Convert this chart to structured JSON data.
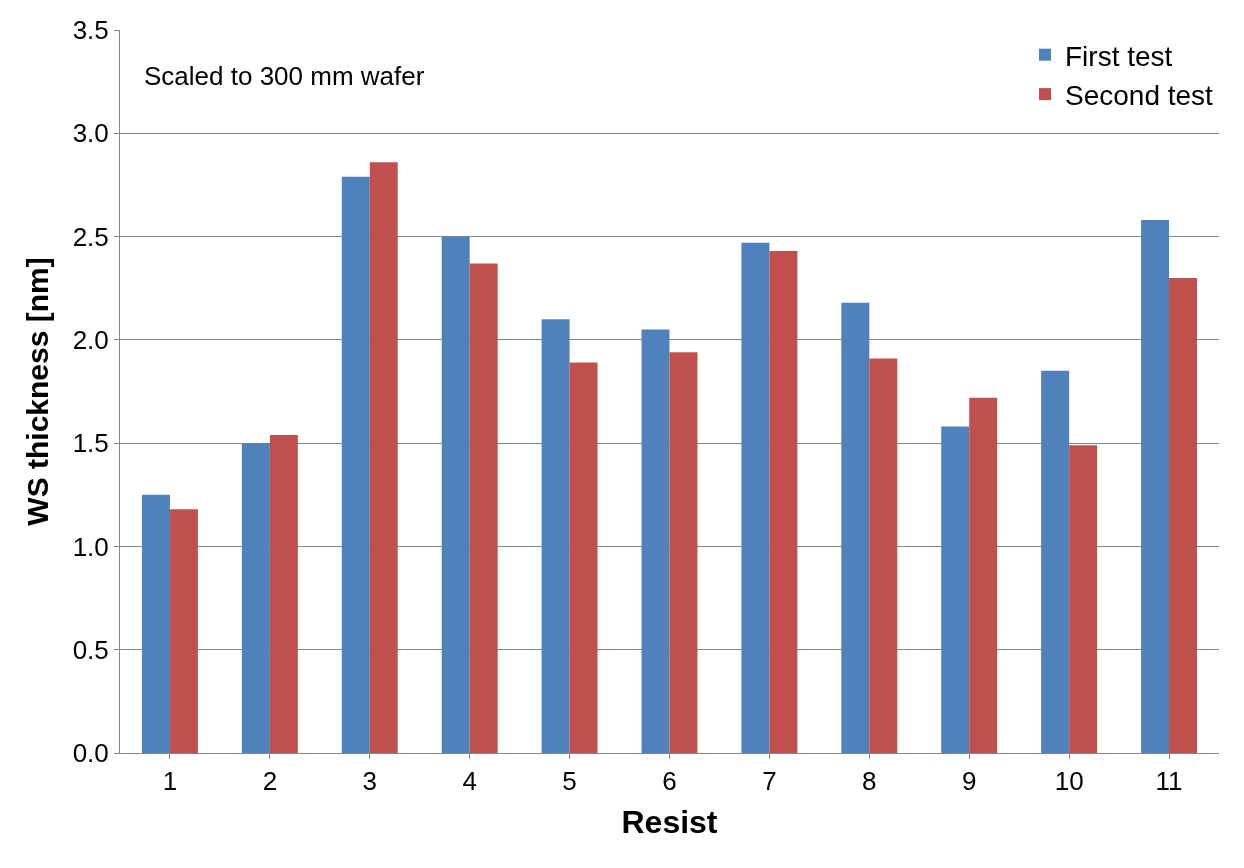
{
  "chart_data": {
    "type": "bar",
    "xlabel": "Resist",
    "ylabel": "WS thickness [nm]",
    "categories": [
      "1",
      "2",
      "3",
      "4",
      "5",
      "6",
      "7",
      "8",
      "9",
      "10",
      "11"
    ],
    "series": [
      {
        "name": "First test",
        "color": "#4f81bd",
        "values": [
          1.25,
          1.5,
          2.79,
          2.5,
          2.1,
          2.05,
          2.47,
          2.18,
          1.58,
          1.85,
          2.58
        ]
      },
      {
        "name": "Second test",
        "color": "#c0504d",
        "values": [
          1.18,
          1.54,
          2.86,
          2.37,
          1.89,
          1.94,
          2.43,
          1.91,
          1.72,
          1.49,
          2.3
        ]
      }
    ],
    "ylim": [
      0,
      3.5
    ],
    "yticks": [
      {
        "value": 0,
        "label": "0.0"
      },
      {
        "value": 0.5,
        "label": "0.5"
      },
      {
        "value": 1,
        "label": "1.0"
      },
      {
        "value": 1.5,
        "label": "1.5"
      },
      {
        "value": 2,
        "label": "2.0"
      },
      {
        "value": 2.5,
        "label": "2.5"
      },
      {
        "value": 3,
        "label": "3.0"
      },
      {
        "value": 3.5,
        "label": "3.5"
      }
    ],
    "grid": "y",
    "legend": "top right",
    "annotations": [
      "Scaled to 300 mm wafer"
    ]
  }
}
